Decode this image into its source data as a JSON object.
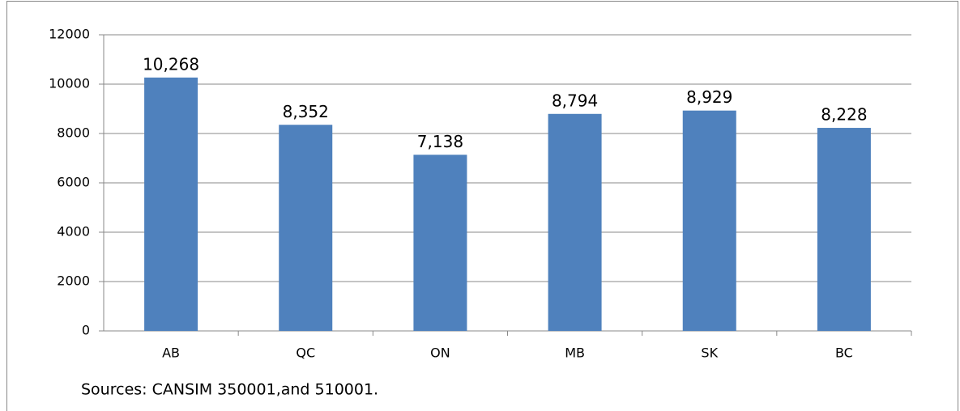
{
  "chart_data": {
    "type": "bar",
    "categories": [
      "AB",
      "QC",
      "ON",
      "MB",
      "SK",
      "BC"
    ],
    "values": [
      10268,
      8352,
      7138,
      8794,
      8929,
      8228
    ],
    "value_labels": [
      "10,268",
      "8,352",
      "7,138",
      "8,794",
      "8,929",
      "8,228"
    ],
    "color": "#4f81bd",
    "ylim": [
      0,
      12000
    ],
    "yticks": [
      0,
      2000,
      4000,
      6000,
      8000,
      10000,
      12000
    ],
    "grid": true,
    "annotation": "Sources: CANSIM 350001,and 510001."
  }
}
